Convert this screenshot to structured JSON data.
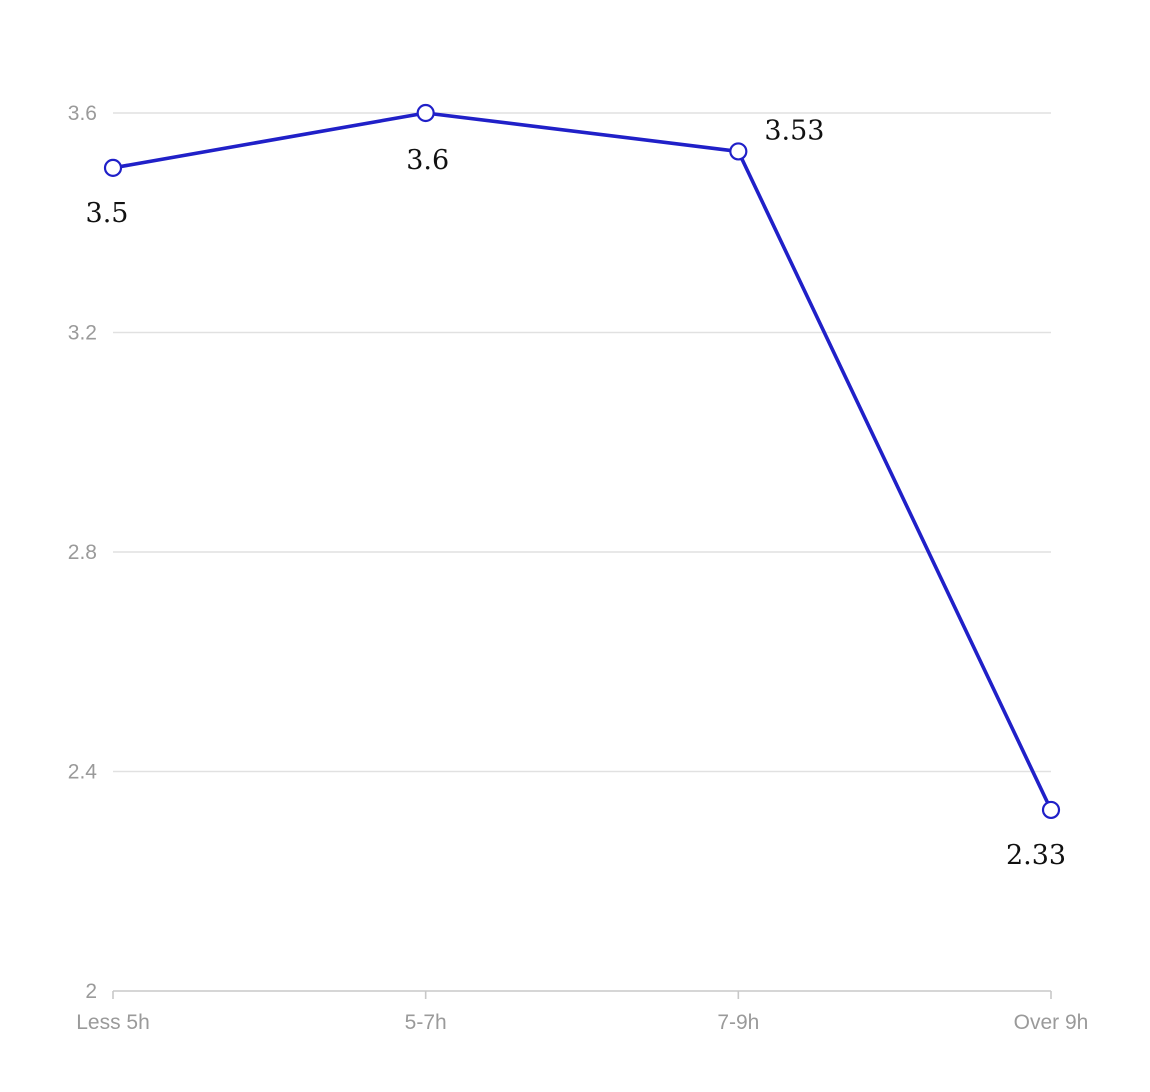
{
  "chart_data": {
    "type": "line",
    "title": "",
    "xlabel": "",
    "ylabel": "",
    "categories": [
      "Less 5h",
      "5-7h",
      "7-9h",
      "Over 9h"
    ],
    "series": [
      {
        "values": [
          3.5,
          3.6,
          3.53,
          2.33
        ],
        "labels": [
          "3.5",
          "3.6",
          "3.53",
          "2.33"
        ]
      }
    ],
    "ylim": [
      2,
      3.6
    ],
    "yticks": [
      "2",
      "2.4",
      "2.8",
      "3.2",
      "3.6"
    ],
    "grid": true,
    "legend": "none",
    "colors": {
      "line": "#2020c8",
      "grid": "#e1e1e1",
      "axis": "#c8c8c8",
      "tick_text": "#9a9a9a"
    }
  }
}
